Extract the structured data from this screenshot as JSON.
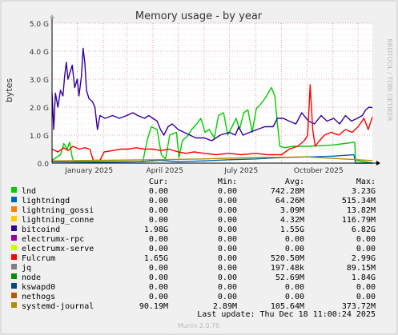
{
  "chart_data": {
    "type": "line",
    "title": "Memory usage - by year",
    "ylabel": "bytes",
    "watermark": "RRDTOOL / TOBI OETIKER",
    "footer": "Munin 2.0.76",
    "last_update": "Last update: Thu Dec 18 11:00:24 2025",
    "ylim": [
      0,
      5000000000
    ],
    "yticks": [
      {
        "value": 0,
        "label": "0.0"
      },
      {
        "value": 1000000000,
        "label": "1.0 G"
      },
      {
        "value": 2000000000,
        "label": "2.0 G"
      },
      {
        "value": 3000000000,
        "label": "3.0 G"
      },
      {
        "value": 4000000000,
        "label": "4.0 G"
      },
      {
        "value": 5000000000,
        "label": "5.0 G"
      }
    ],
    "x_start": "2024-12-02",
    "x_end": "2025-12-18",
    "month_ticks": [
      "2024-12-01",
      "2025-01-01",
      "2025-02-01",
      "2025-03-01",
      "2025-04-01",
      "2025-05-01",
      "2025-06-01",
      "2025-07-01",
      "2025-08-01",
      "2025-09-01",
      "2025-10-01",
      "2025-11-01",
      "2025-12-01"
    ],
    "x_labels": [
      {
        "date": "2025-01-15",
        "label": "January 2025"
      },
      {
        "date": "2025-04-15",
        "label": "April 2025"
      },
      {
        "date": "2025-07-15",
        "label": "July 2025"
      },
      {
        "date": "2025-10-15",
        "label": "October 2025"
      }
    ],
    "legend_headers": [
      "Cur:",
      "Min:",
      "Avg:",
      "Max:"
    ],
    "legend": [
      {
        "name": "lnd",
        "color": "#00cc00",
        "cur": "0.00",
        "min": "0.00",
        "avg": "742.28M",
        "max": "3.23G"
      },
      {
        "name": "lightningd",
        "color": "#0066b3",
        "cur": "0.00",
        "min": "0.00",
        "avg": "64.26M",
        "max": "515.34M"
      },
      {
        "name": "lightning_gossi",
        "color": "#ff8000",
        "cur": "0.00",
        "min": "0.00",
        "avg": "3.09M",
        "max": "13.82M"
      },
      {
        "name": "lightning_conne",
        "color": "#ffcc00",
        "cur": "0.00",
        "min": "0.00",
        "avg": "4.32M",
        "max": "116.79M"
      },
      {
        "name": "bitcoind",
        "color": "#330099",
        "cur": "1.98G",
        "min": "0.00",
        "avg": "1.55G",
        "max": "6.82G"
      },
      {
        "name": "electrumx-rpc",
        "color": "#990099",
        "cur": "0.00",
        "min": "0.00",
        "avg": "0.00",
        "max": "0.00"
      },
      {
        "name": "electrumx-serve",
        "color": "#ccff00",
        "cur": "0.00",
        "min": "0.00",
        "avg": "0.00",
        "max": "0.00"
      },
      {
        "name": "Fulcrum",
        "color": "#ff0000",
        "cur": "1.65G",
        "min": "0.00",
        "avg": "520.50M",
        "max": "2.99G"
      },
      {
        "name": "jq",
        "color": "#808080",
        "cur": "0.00",
        "min": "0.00",
        "avg": "197.48k",
        "max": "89.15M"
      },
      {
        "name": "node",
        "color": "#008f00",
        "cur": "0.00",
        "min": "0.00",
        "avg": "52.69M",
        "max": "1.84G"
      },
      {
        "name": "kswapd0",
        "color": "#00487d",
        "cur": "0.00",
        "min": "0.00",
        "avg": "0.00",
        "max": "0.00"
      },
      {
        "name": "nethogs",
        "color": "#b35a00",
        "cur": "0.00",
        "min": "0.00",
        "avg": "0.00",
        "max": "0.00"
      },
      {
        "name": "systemd-journal",
        "color": "#b38f00",
        "cur": "90.19M",
        "min": "2.89M",
        "avg": "105.64M",
        "max": "373.72M"
      }
    ],
    "series": [
      {
        "name": "lnd",
        "color": "#00cc00",
        "points": [
          [
            "2024-12-02",
            100000000.0
          ],
          [
            "2024-12-12",
            300000000.0
          ],
          [
            "2024-12-16",
            700000000.0
          ],
          [
            "2024-12-20",
            500000000.0
          ],
          [
            "2024-12-23",
            750000000.0
          ],
          [
            "2024-12-26",
            200000000.0
          ],
          [
            "2024-12-28",
            50000000.0
          ],
          [
            "2025-03-20",
            50000000.0
          ],
          [
            "2025-03-25",
            800000000.0
          ],
          [
            "2025-03-30",
            1300000000.0
          ],
          [
            "2025-04-06",
            1200000000.0
          ],
          [
            "2025-04-11",
            300000000.0
          ],
          [
            "2025-04-16",
            150000000.0
          ],
          [
            "2025-04-21",
            1000000000.0
          ],
          [
            "2025-04-29",
            1100000000.0
          ],
          [
            "2025-05-02",
            200000000.0
          ],
          [
            "2025-05-06",
            800000000.0
          ],
          [
            "2025-05-13",
            1000000000.0
          ],
          [
            "2025-05-17",
            1200000000.0
          ],
          [
            "2025-05-23",
            1400000000.0
          ],
          [
            "2025-05-28",
            1600000000.0
          ],
          [
            "2025-06-02",
            1100000000.0
          ],
          [
            "2025-06-07",
            1200000000.0
          ],
          [
            "2025-06-13",
            900000000.0
          ],
          [
            "2025-06-18",
            1700000000.0
          ],
          [
            "2025-06-24",
            1800000000.0
          ],
          [
            "2025-06-29",
            1000000000.0
          ],
          [
            "2025-07-04",
            1300000000.0
          ],
          [
            "2025-07-09",
            1600000000.0
          ],
          [
            "2025-07-13",
            1200000000.0
          ],
          [
            "2025-07-18",
            1800000000.0
          ],
          [
            "2025-07-23",
            1900000000.0
          ],
          [
            "2025-07-28",
            1100000000.0
          ],
          [
            "2025-08-02",
            1950000000.0
          ],
          [
            "2025-08-07",
            2100000000.0
          ],
          [
            "2025-08-12",
            2300000000.0
          ],
          [
            "2025-08-16",
            2500000000.0
          ],
          [
            "2025-08-20",
            2700000000.0
          ],
          [
            "2025-08-24",
            2400000000.0
          ],
          [
            "2025-08-27",
            1400000000.0
          ],
          [
            "2025-08-30",
            600000000.0
          ],
          [
            "2025-09-05",
            550000000.0
          ],
          [
            "2025-09-14",
            600000000.0
          ],
          [
            "2025-10-01",
            600000000.0
          ],
          [
            "2025-10-15",
            620000000.0
          ],
          [
            "2025-11-01",
            650000000.0
          ],
          [
            "2025-11-15",
            700000000.0
          ],
          [
            "2025-11-27",
            750000000.0
          ],
          [
            "2025-11-28",
            100000000.0
          ],
          [
            "2025-12-18",
            0.0
          ]
        ]
      },
      {
        "name": "lightningd",
        "color": "#0066b3",
        "points": [
          [
            "2024-12-02",
            50000000.0
          ],
          [
            "2025-02-01",
            30000000.0
          ],
          [
            "2025-03-15",
            50000000.0
          ],
          [
            "2025-04-10",
            100000000.0
          ],
          [
            "2025-05-01",
            50000000.0
          ],
          [
            "2025-06-01",
            80000000.0
          ],
          [
            "2025-07-01",
            120000000.0
          ],
          [
            "2025-08-01",
            150000000.0
          ],
          [
            "2025-09-01",
            200000000.0
          ],
          [
            "2025-10-01",
            220000000.0
          ],
          [
            "2025-11-01",
            250000000.0
          ],
          [
            "2025-11-26",
            300000000.0
          ],
          [
            "2025-11-28",
            0.0
          ],
          [
            "2025-12-18",
            0.0
          ]
        ]
      },
      {
        "name": "bitcoind",
        "color": "#330099",
        "points": [
          [
            "2024-12-02",
            2500000000.0
          ],
          [
            "2024-12-04",
            1200000000.0
          ],
          [
            "2024-12-06",
            2500000000.0
          ],
          [
            "2024-12-09",
            2000000000.0
          ],
          [
            "2024-12-12",
            2600000000.0
          ],
          [
            "2024-12-15",
            2400000000.0
          ],
          [
            "2024-12-17",
            3100000000.0
          ],
          [
            "2024-12-19",
            3600000000.0
          ],
          [
            "2024-12-21",
            3000000000.0
          ],
          [
            "2024-12-23",
            3200000000.0
          ],
          [
            "2024-12-26",
            3500000000.0
          ],
          [
            "2024-12-29",
            2700000000.0
          ],
          [
            "2025-01-01",
            3000000000.0
          ],
          [
            "2025-01-03",
            2400000000.0
          ],
          [
            "2025-01-06",
            3100000000.0
          ],
          [
            "2025-01-08",
            4100000000.0
          ],
          [
            "2025-01-10",
            3600000000.0
          ],
          [
            "2025-01-12",
            2600000000.0
          ],
          [
            "2025-01-15",
            2300000000.0
          ],
          [
            "2025-01-19",
            2200000000.0
          ],
          [
            "2025-01-22",
            2000000000.0
          ],
          [
            "2025-01-25",
            1200000000.0
          ],
          [
            "2025-01-28",
            1700000000.0
          ],
          [
            "2025-02-03",
            1600000000.0
          ],
          [
            "2025-02-12",
            1700000000.0
          ],
          [
            "2025-02-20",
            1600000000.0
          ],
          [
            "2025-03-01",
            1700000000.0
          ],
          [
            "2025-03-08",
            1800000000.0
          ],
          [
            "2025-03-14",
            1700000000.0
          ],
          [
            "2025-03-22",
            1600000000.0
          ],
          [
            "2025-03-27",
            1700000000.0
          ],
          [
            "2025-04-01",
            1600000000.0
          ],
          [
            "2025-04-06",
            1500000000.0
          ],
          [
            "2025-04-10",
            1200000000.0
          ],
          [
            "2025-04-14",
            1000000000.0
          ],
          [
            "2025-04-19",
            1300000000.0
          ],
          [
            "2025-04-24",
            1400000000.0
          ],
          [
            "2025-05-01",
            1200000000.0
          ],
          [
            "2025-05-08",
            1100000000.0
          ],
          [
            "2025-05-15",
            1000000000.0
          ],
          [
            "2025-05-22",
            900000000.0
          ],
          [
            "2025-06-01",
            900000000.0
          ],
          [
            "2025-06-10",
            800000000.0
          ],
          [
            "2025-06-20",
            1000000000.0
          ],
          [
            "2025-07-01",
            1100000000.0
          ],
          [
            "2025-07-08",
            1000000000.0
          ],
          [
            "2025-07-12",
            1300000000.0
          ],
          [
            "2025-07-17",
            1000000000.0
          ],
          [
            "2025-07-25",
            1100000000.0
          ],
          [
            "2025-08-03",
            1200000000.0
          ],
          [
            "2025-08-12",
            1300000000.0
          ],
          [
            "2025-08-22",
            1300000000.0
          ],
          [
            "2025-08-27",
            1600000000.0
          ],
          [
            "2025-09-03",
            1600000000.0
          ],
          [
            "2025-09-10",
            1500000000.0
          ],
          [
            "2025-09-18",
            1400000000.0
          ],
          [
            "2025-09-25",
            1800000000.0
          ],
          [
            "2025-10-03",
            1500000000.0
          ],
          [
            "2025-10-10",
            1400000000.0
          ],
          [
            "2025-10-18",
            1700000000.0
          ],
          [
            "2025-10-25",
            1500000000.0
          ],
          [
            "2025-11-02",
            1600000000.0
          ],
          [
            "2025-11-09",
            1400000000.0
          ],
          [
            "2025-11-16",
            1700000000.0
          ],
          [
            "2025-11-23",
            1500000000.0
          ],
          [
            "2025-11-30",
            1600000000.0
          ],
          [
            "2025-12-06",
            1700000000.0
          ],
          [
            "2025-12-10",
            1900000000.0
          ],
          [
            "2025-12-14",
            2000000000.0
          ],
          [
            "2025-12-18",
            1980000000.0
          ]
        ]
      },
      {
        "name": "Fulcrum",
        "color": "#ff0000",
        "points": [
          [
            "2024-12-02",
            500000000.0
          ],
          [
            "2024-12-09",
            400000000.0
          ],
          [
            "2024-12-16",
            550000000.0
          ],
          [
            "2024-12-21",
            450000000.0
          ],
          [
            "2024-12-27",
            600000000.0
          ],
          [
            "2025-01-03",
            500000000.0
          ],
          [
            "2025-01-10",
            550000000.0
          ],
          [
            "2025-01-16",
            500000000.0
          ],
          [
            "2025-01-20",
            100000000.0
          ],
          [
            "2025-01-28",
            100000000.0
          ],
          [
            "2025-02-02",
            400000000.0
          ],
          [
            "2025-02-12",
            450000000.0
          ],
          [
            "2025-02-22",
            500000000.0
          ],
          [
            "2025-03-02",
            500000000.0
          ],
          [
            "2025-03-12",
            550000000.0
          ],
          [
            "2025-03-22",
            500000000.0
          ],
          [
            "2025-04-01",
            500000000.0
          ],
          [
            "2025-04-10",
            450000000.0
          ],
          [
            "2025-04-20",
            500000000.0
          ],
          [
            "2025-05-01",
            400000000.0
          ],
          [
            "2025-05-10",
            350000000.0
          ],
          [
            "2025-05-20",
            400000000.0
          ],
          [
            "2025-06-01",
            350000000.0
          ],
          [
            "2025-06-15",
            300000000.0
          ],
          [
            "2025-07-01",
            350000000.0
          ],
          [
            "2025-07-15",
            300000000.0
          ],
          [
            "2025-08-01",
            350000000.0
          ],
          [
            "2025-08-15",
            300000000.0
          ],
          [
            "2025-09-01",
            300000000.0
          ],
          [
            "2025-09-10",
            500000000.0
          ],
          [
            "2025-09-20",
            600000000.0
          ],
          [
            "2025-09-28",
            800000000.0
          ],
          [
            "2025-10-02",
            1000000000.0
          ],
          [
            "2025-10-05",
            2800000000.0
          ],
          [
            "2025-10-08",
            1200000000.0
          ],
          [
            "2025-10-11",
            600000000.0
          ],
          [
            "2025-10-16",
            800000000.0
          ],
          [
            "2025-10-22",
            1000000000.0
          ],
          [
            "2025-10-30",
            1100000000.0
          ],
          [
            "2025-11-08",
            1000000000.0
          ],
          [
            "2025-11-16",
            1200000000.0
          ],
          [
            "2025-11-24",
            1100000000.0
          ],
          [
            "2025-12-01",
            1300000000.0
          ],
          [
            "2025-12-08",
            1600000000.0
          ],
          [
            "2025-12-13",
            1200000000.0
          ],
          [
            "2025-12-18",
            1650000000.0
          ]
        ]
      },
      {
        "name": "systemd-journal",
        "color": "#b38f00",
        "points": [
          [
            "2024-12-02",
            80000000.0
          ],
          [
            "2025-02-01",
            100000000.0
          ],
          [
            "2025-04-01",
            120000000.0
          ],
          [
            "2025-06-01",
            150000000.0
          ],
          [
            "2025-08-01",
            200000000.0
          ],
          [
            "2025-10-01",
            220000000.0
          ],
          [
            "2025-12-18",
            90000000.0
          ]
        ]
      }
    ]
  }
}
